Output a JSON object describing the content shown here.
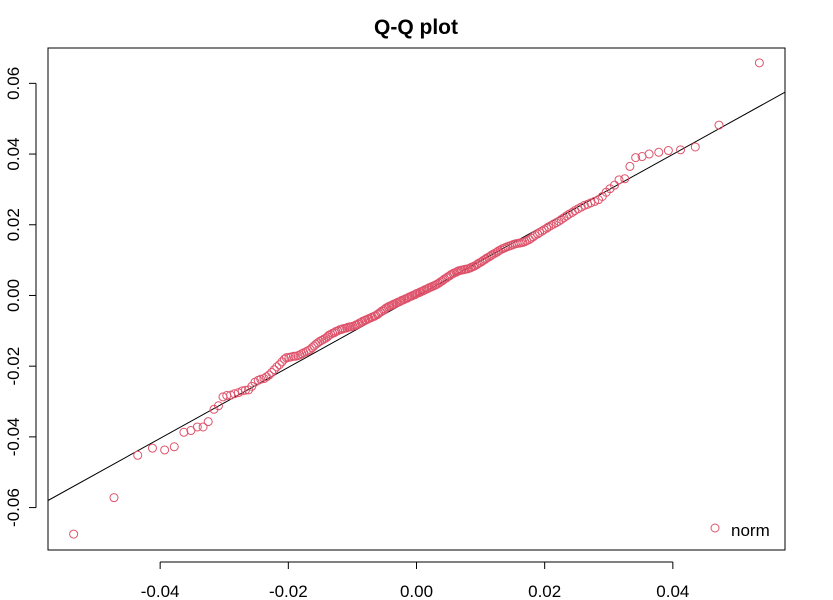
{
  "chart_data": {
    "type": "scatter",
    "title": "Q-Q plot",
    "xlabel": "",
    "ylabel": "",
    "xlim": [
      -0.0575,
      0.0575
    ],
    "ylim": [
      -0.072,
      0.07
    ],
    "x_ticks": [
      {
        "value": -0.04,
        "label": "-0.04"
      },
      {
        "value": -0.02,
        "label": "-0.02"
      },
      {
        "value": 0.0,
        "label": "0.00"
      },
      {
        "value": 0.02,
        "label": "0.02"
      },
      {
        "value": 0.04,
        "label": "0.04"
      }
    ],
    "y_ticks": [
      {
        "value": -0.06,
        "label": "-0.06"
      },
      {
        "value": -0.04,
        "label": "-0.04"
      },
      {
        "value": -0.02,
        "label": "-0.02"
      },
      {
        "value": 0.0,
        "label": "0.00"
      },
      {
        "value": 0.02,
        "label": "0.02"
      },
      {
        "value": 0.04,
        "label": "0.04"
      },
      {
        "value": 0.06,
        "label": "0.06"
      }
    ],
    "grid": false,
    "legend": {
      "position": "bottom-right",
      "entries": [
        {
          "label": "norm",
          "color": "#DF536B"
        }
      ]
    },
    "reference_line": {
      "x": [
        -0.0575,
        0.0575
      ],
      "y": [
        -0.058,
        0.0575
      ],
      "color": "#000000"
    },
    "series": [
      {
        "name": "norm",
        "color": "#DF536B",
        "points": [
          [
            -0.0535,
            -0.0675
          ],
          [
            -0.0472,
            -0.0572
          ],
          [
            -0.0435,
            -0.0452
          ],
          [
            -0.0412,
            -0.0432
          ],
          [
            -0.0393,
            -0.0437
          ],
          [
            -0.0378,
            -0.0428
          ],
          [
            -0.0363,
            -0.0387
          ],
          [
            -0.0352,
            -0.0382
          ],
          [
            -0.0342,
            -0.0372
          ],
          [
            -0.0333,
            -0.0372
          ],
          [
            -0.0325,
            -0.0357
          ],
          [
            -0.0316,
            -0.0322
          ],
          [
            -0.0309,
            -0.0312
          ],
          [
            -0.0302,
            -0.0287
          ],
          [
            -0.0296,
            -0.0283
          ],
          [
            -0.029,
            -0.0282
          ],
          [
            -0.0284,
            -0.0278
          ],
          [
            -0.0278,
            -0.0275
          ],
          [
            -0.0272,
            -0.027
          ],
          [
            -0.0267,
            -0.0268
          ],
          [
            -0.0262,
            -0.0267
          ],
          [
            -0.0257,
            -0.0257
          ],
          [
            -0.0252,
            -0.0245
          ],
          [
            -0.0247,
            -0.024
          ],
          [
            -0.0243,
            -0.0237
          ],
          [
            -0.0238,
            -0.0235
          ],
          [
            -0.0234,
            -0.023
          ],
          [
            -0.023,
            -0.0225
          ],
          [
            -0.0226,
            -0.0218
          ],
          [
            -0.0222,
            -0.021
          ],
          [
            -0.0218,
            -0.0202
          ],
          [
            -0.0214,
            -0.0196
          ],
          [
            -0.021,
            -0.0188
          ],
          [
            -0.0206,
            -0.018
          ],
          [
            -0.0203,
            -0.0176
          ],
          [
            -0.0199,
            -0.0175
          ],
          [
            -0.0196,
            -0.0174
          ],
          [
            -0.0192,
            -0.0172
          ],
          [
            -0.0189,
            -0.0172
          ],
          [
            -0.0185,
            -0.017
          ],
          [
            -0.0182,
            -0.0168
          ],
          [
            -0.0179,
            -0.0165
          ],
          [
            -0.0176,
            -0.0162
          ],
          [
            -0.0172,
            -0.0159
          ],
          [
            -0.0169,
            -0.0156
          ],
          [
            -0.0166,
            -0.0153
          ],
          [
            -0.0163,
            -0.0148
          ],
          [
            -0.016,
            -0.0143
          ],
          [
            -0.0157,
            -0.0138
          ],
          [
            -0.0154,
            -0.0134
          ],
          [
            -0.0151,
            -0.013
          ],
          [
            -0.0148,
            -0.0127
          ],
          [
            -0.0145,
            -0.0124
          ],
          [
            -0.0142,
            -0.0121
          ],
          [
            -0.0139,
            -0.0117
          ],
          [
            -0.0137,
            -0.0113
          ],
          [
            -0.0134,
            -0.011
          ],
          [
            -0.0131,
            -0.0107
          ],
          [
            -0.0128,
            -0.0105
          ],
          [
            -0.0126,
            -0.0102
          ],
          [
            -0.0123,
            -0.01
          ],
          [
            -0.012,
            -0.0097
          ],
          [
            -0.0117,
            -0.0096
          ],
          [
            -0.0115,
            -0.0094
          ],
          [
            -0.0112,
            -0.0093
          ],
          [
            -0.0109,
            -0.0092
          ],
          [
            -0.0107,
            -0.009
          ],
          [
            -0.0104,
            -0.0089
          ],
          [
            -0.0102,
            -0.0088
          ],
          [
            -0.0099,
            -0.0087
          ],
          [
            -0.0096,
            -0.0085
          ],
          [
            -0.0094,
            -0.0083
          ],
          [
            -0.0091,
            -0.0081
          ],
          [
            -0.0089,
            -0.0078
          ],
          [
            -0.0086,
            -0.0076
          ],
          [
            -0.0084,
            -0.0073
          ],
          [
            -0.0081,
            -0.0071
          ],
          [
            -0.0079,
            -0.0069
          ],
          [
            -0.0076,
            -0.0067
          ],
          [
            -0.0074,
            -0.0065
          ],
          [
            -0.0071,
            -0.0063
          ],
          [
            -0.0069,
            -0.0061
          ],
          [
            -0.0066,
            -0.0059
          ],
          [
            -0.0064,
            -0.0057
          ],
          [
            -0.0061,
            -0.0054
          ],
          [
            -0.0059,
            -0.0051
          ],
          [
            -0.0056,
            -0.0047
          ],
          [
            -0.0054,
            -0.0044
          ],
          [
            -0.0051,
            -0.0041
          ],
          [
            -0.0049,
            -0.0038
          ],
          [
            -0.0047,
            -0.0035
          ],
          [
            -0.0044,
            -0.0032
          ],
          [
            -0.0042,
            -0.003
          ],
          [
            -0.0039,
            -0.0028
          ],
          [
            -0.0037,
            -0.0026
          ],
          [
            -0.0035,
            -0.0024
          ],
          [
            -0.0032,
            -0.0022
          ],
          [
            -0.003,
            -0.002
          ],
          [
            -0.0027,
            -0.0018
          ],
          [
            -0.0025,
            -0.0016
          ],
          [
            -0.0023,
            -0.0014
          ],
          [
            -0.002,
            -0.0012
          ],
          [
            -0.0018,
            -0.001
          ],
          [
            -0.0015,
            -0.0008
          ],
          [
            -0.0013,
            -0.0006
          ],
          [
            -0.0011,
            -0.0004
          ],
          [
            -0.0008,
            -0.0002
          ],
          [
            -0.0006,
            0.0
          ],
          [
            -0.0003,
            0.0002
          ],
          [
            -0.0001,
            0.0004
          ],
          [
            0.0001,
            0.0006
          ],
          [
            0.0004,
            0.0008
          ],
          [
            0.0006,
            0.001
          ],
          [
            0.0009,
            0.0012
          ],
          [
            0.0011,
            0.0014
          ],
          [
            0.0013,
            0.0016
          ],
          [
            0.0016,
            0.0018
          ],
          [
            0.0018,
            0.002
          ],
          [
            0.002,
            0.0022
          ],
          [
            0.0023,
            0.0024
          ],
          [
            0.0025,
            0.0026
          ],
          [
            0.0028,
            0.0028
          ],
          [
            0.003,
            0.003
          ],
          [
            0.0032,
            0.0032
          ],
          [
            0.0035,
            0.0035
          ],
          [
            0.0037,
            0.0038
          ],
          [
            0.004,
            0.0041
          ],
          [
            0.0042,
            0.0044
          ],
          [
            0.0044,
            0.0047
          ],
          [
            0.0047,
            0.005
          ],
          [
            0.0049,
            0.0053
          ],
          [
            0.0052,
            0.0056
          ],
          [
            0.0054,
            0.0059
          ],
          [
            0.0057,
            0.0062
          ],
          [
            0.0059,
            0.0064
          ],
          [
            0.0062,
            0.0066
          ],
          [
            0.0064,
            0.0068
          ],
          [
            0.0066,
            0.007
          ],
          [
            0.0069,
            0.0071
          ],
          [
            0.0071,
            0.0072
          ],
          [
            0.0074,
            0.0073
          ],
          [
            0.0076,
            0.0074
          ],
          [
            0.0079,
            0.0075
          ],
          [
            0.0081,
            0.0076
          ],
          [
            0.0084,
            0.0078
          ],
          [
            0.0086,
            0.008
          ],
          [
            0.0089,
            0.0082
          ],
          [
            0.0091,
            0.0084
          ],
          [
            0.0094,
            0.0087
          ],
          [
            0.0096,
            0.009
          ],
          [
            0.0099,
            0.0093
          ],
          [
            0.0102,
            0.0096
          ],
          [
            0.0104,
            0.0099
          ],
          [
            0.0107,
            0.0102
          ],
          [
            0.0109,
            0.0105
          ],
          [
            0.0112,
            0.0108
          ],
          [
            0.0115,
            0.0111
          ],
          [
            0.0117,
            0.0114
          ],
          [
            0.012,
            0.0117
          ],
          [
            0.0123,
            0.012
          ],
          [
            0.0126,
            0.0123
          ],
          [
            0.0128,
            0.0126
          ],
          [
            0.0131,
            0.0129
          ],
          [
            0.0134,
            0.0132
          ],
          [
            0.0137,
            0.0134
          ],
          [
            0.0139,
            0.0136
          ],
          [
            0.0142,
            0.0138
          ],
          [
            0.0145,
            0.014
          ],
          [
            0.0148,
            0.0142
          ],
          [
            0.0151,
            0.0144
          ],
          [
            0.0154,
            0.0146
          ],
          [
            0.0157,
            0.0147
          ],
          [
            0.016,
            0.0148
          ],
          [
            0.0163,
            0.0149
          ],
          [
            0.0166,
            0.015
          ],
          [
            0.0169,
            0.0152
          ],
          [
            0.0172,
            0.0155
          ],
          [
            0.0176,
            0.0158
          ],
          [
            0.0179,
            0.0162
          ],
          [
            0.0182,
            0.0166
          ],
          [
            0.0185,
            0.017
          ],
          [
            0.0189,
            0.0174
          ],
          [
            0.0192,
            0.0178
          ],
          [
            0.0196,
            0.0182
          ],
          [
            0.0199,
            0.0186
          ],
          [
            0.0203,
            0.019
          ],
          [
            0.0206,
            0.0194
          ],
          [
            0.021,
            0.0198
          ],
          [
            0.0214,
            0.0202
          ],
          [
            0.0218,
            0.0206
          ],
          [
            0.0222,
            0.021
          ],
          [
            0.0226,
            0.0215
          ],
          [
            0.023,
            0.022
          ],
          [
            0.0234,
            0.0225
          ],
          [
            0.0238,
            0.023
          ],
          [
            0.0243,
            0.0235
          ],
          [
            0.0247,
            0.024
          ],
          [
            0.0252,
            0.0245
          ],
          [
            0.0257,
            0.025
          ],
          [
            0.0262,
            0.0255
          ],
          [
            0.0267,
            0.0258
          ],
          [
            0.0272,
            0.0262
          ],
          [
            0.0278,
            0.0266
          ],
          [
            0.0284,
            0.0271
          ],
          [
            0.029,
            0.028
          ],
          [
            0.0296,
            0.0292
          ],
          [
            0.0302,
            0.0302
          ],
          [
            0.0309,
            0.0312
          ],
          [
            0.0316,
            0.0327
          ],
          [
            0.0325,
            0.033
          ],
          [
            0.0333,
            0.0365
          ],
          [
            0.0342,
            0.039
          ],
          [
            0.0352,
            0.0393
          ],
          [
            0.0363,
            0.04
          ],
          [
            0.0378,
            0.0405
          ],
          [
            0.0393,
            0.041
          ],
          [
            0.0412,
            0.0412
          ],
          [
            0.0435,
            0.042
          ],
          [
            0.0472,
            0.0482
          ],
          [
            0.0535,
            0.0658
          ]
        ]
      }
    ]
  }
}
